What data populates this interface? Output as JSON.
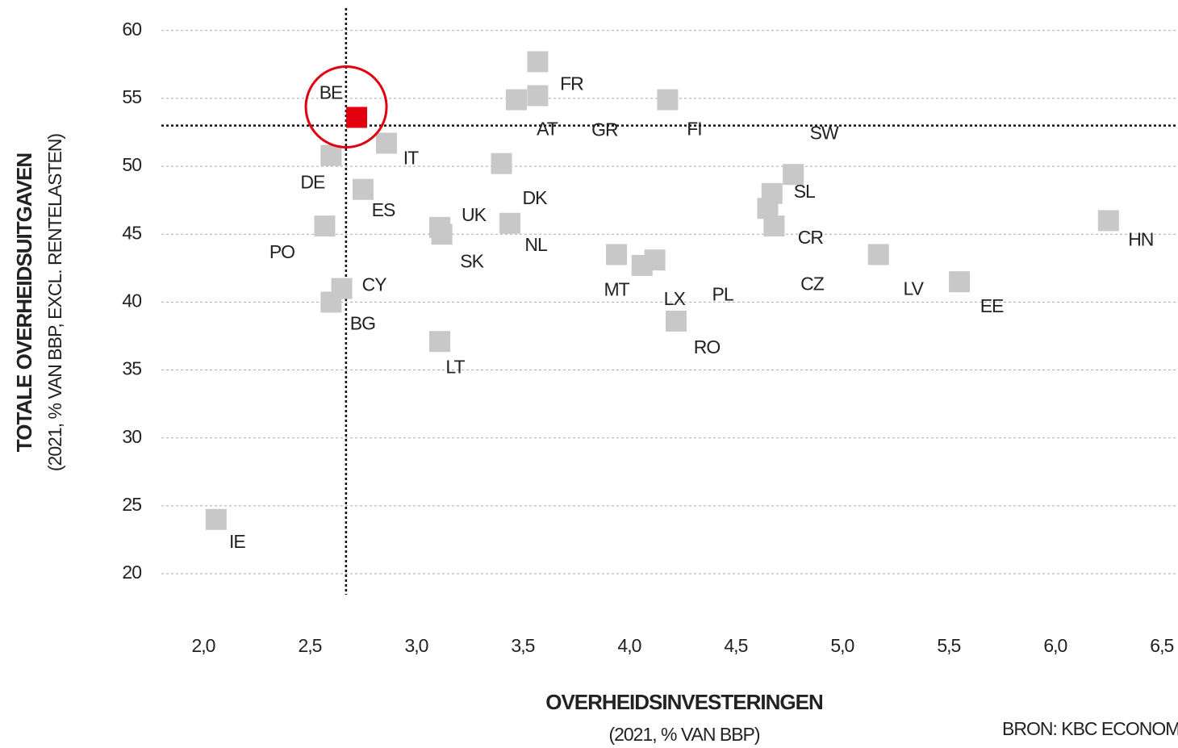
{
  "chart_data": {
    "type": "scatter",
    "y_title": "TOTALE OVERHEIDSUITGAVEN",
    "y_subtitle": "(2021, % VAN BBP, EXCL. RENTELASTEN)",
    "x_title": "OVERHEIDSINVESTERINGEN",
    "x_subtitle": "(2021, % VAN BBP)",
    "source": "BRON: KBC ECONOM",
    "categories": [
      "BE",
      "FR",
      "AT",
      "GR",
      "FI",
      "SW",
      "SL",
      "CZ",
      "CR",
      "LV",
      "EE",
      "HN",
      "IT",
      "DE",
      "DK",
      "ES",
      "NL",
      "UK",
      "SK",
      "PO",
      "CY",
      "BG",
      "MT",
      "LX",
      "PL",
      "RO",
      "LT",
      "IE"
    ],
    "x": [
      2.72,
      3.57,
      3.47,
      3.57,
      4.18,
      4.77,
      4.67,
      4.65,
      4.68,
      5.17,
      5.55,
      6.25,
      2.86,
      2.6,
      3.4,
      2.75,
      3.44,
      3.11,
      3.12,
      2.57,
      2.65,
      2.6,
      3.94,
      4.06,
      4.12,
      4.22,
      3.11,
      2.06
    ],
    "values": [
      53.6,
      57.7,
      54.9,
      55.2,
      54.9,
      49.4,
      48.0,
      46.9,
      45.6,
      43.5,
      41.5,
      46.0,
      51.7,
      50.8,
      50.2,
      48.3,
      45.8,
      45.5,
      45.0,
      45.6,
      41.0,
      40.0,
      43.5,
      42.7,
      43.1,
      38.6,
      37.1,
      24.0
    ],
    "colors": [
      "#e3000f",
      "#c8c8c8",
      "#c8c8c8",
      "#c8c8c8",
      "#c8c8c8",
      "#c8c8c8",
      "#c8c8c8",
      "#c8c8c8",
      "#c8c8c8",
      "#c8c8c8",
      "#c8c8c8",
      "#c8c8c8",
      "#c8c8c8",
      "#c8c8c8",
      "#c8c8c8",
      "#c8c8c8",
      "#c8c8c8",
      "#c8c8c8",
      "#c8c8c8",
      "#c8c8c8",
      "#c8c8c8",
      "#c8c8c8",
      "#c8c8c8",
      "#c8c8c8",
      "#c8c8c8",
      "#c8c8c8",
      "#c8c8c8",
      "#c8c8c8"
    ],
    "ref_x": 2.67,
    "ref_y": 53.0,
    "xlim": [
      1.8,
      6.55
    ],
    "ylim": [
      18,
      62
    ],
    "xticks": [
      {
        "value": 2,
        "label": "2,0"
      },
      {
        "value": 2.5,
        "label": "2,5"
      },
      {
        "value": 3,
        "label": "3,0"
      },
      {
        "value": 3.5,
        "label": "3,5"
      },
      {
        "value": 4,
        "label": "4,0"
      },
      {
        "value": 4.5,
        "label": "4,5"
      },
      {
        "value": 5,
        "label": "5,0"
      },
      {
        "value": 5.5,
        "label": "5,5"
      },
      {
        "value": 6,
        "label": "6,0"
      },
      {
        "value": 6.5,
        "label": "6,5"
      }
    ],
    "yticks": [
      20,
      25,
      30,
      35,
      40,
      45,
      50,
      55,
      60
    ],
    "grid": true
  }
}
